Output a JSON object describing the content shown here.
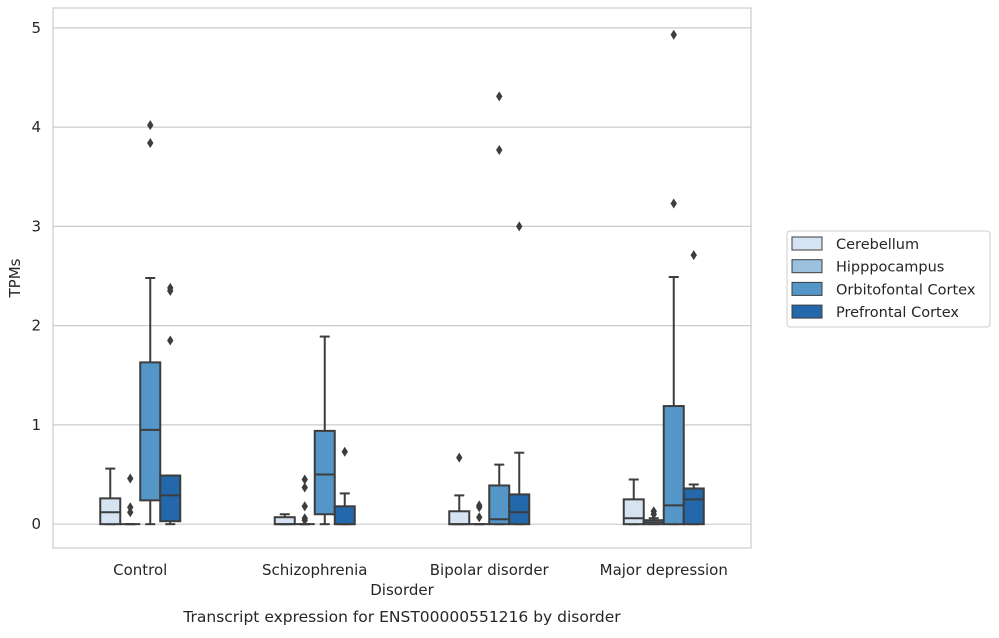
{
  "chart_data": {
    "type": "box",
    "title": "",
    "caption": "Transcript expression for ENST00000551216 by disorder",
    "xlabel": "Disorder",
    "ylabel": "TPMs",
    "ylim": [
      -0.24,
      5.2
    ],
    "yticks": [
      0,
      1,
      2,
      3,
      4,
      5
    ],
    "categories": [
      "Control",
      "Schizophrenia",
      "Bipolar disorder",
      "Major depression"
    ],
    "grid": "horizontal",
    "legend_position": "right",
    "series": [
      {
        "name": "Cerebellum",
        "color": "#d6e3f2",
        "boxes": [
          {
            "q1": 0.0,
            "median": 0.12,
            "q3": 0.26,
            "whisker_low": 0.0,
            "whisker_high": 0.56,
            "outliers": []
          },
          {
            "q1": 0.0,
            "median": 0.0,
            "q3": 0.07,
            "whisker_low": 0.0,
            "whisker_high": 0.1,
            "outliers": []
          },
          {
            "q1": 0.0,
            "median": 0.0,
            "q3": 0.13,
            "whisker_low": 0.0,
            "whisker_high": 0.29,
            "outliers": [
              0.67
            ]
          },
          {
            "q1": 0.0,
            "median": 0.06,
            "q3": 0.25,
            "whisker_low": 0.0,
            "whisker_high": 0.45,
            "outliers": []
          }
        ]
      },
      {
        "name": "Hipppocampus",
        "color": "#9cc1de",
        "boxes": [
          {
            "q1": 0.0,
            "median": 0.0,
            "q3": 0.0,
            "whisker_low": 0.0,
            "whisker_high": 0.0,
            "outliers": [
              0.46,
              0.17,
              0.12
            ]
          },
          {
            "q1": 0.0,
            "median": 0.0,
            "q3": 0.0,
            "whisker_low": 0.0,
            "whisker_high": 0.0,
            "outliers": [
              0.45,
              0.37,
              0.18,
              0.06,
              0.04
            ]
          },
          {
            "q1": 0.0,
            "median": 0.0,
            "q3": 0.0,
            "whisker_low": 0.0,
            "whisker_high": 0.0,
            "outliers": [
              0.19,
              0.17,
              0.07
            ]
          },
          {
            "q1": 0.0,
            "median": 0.02,
            "q3": 0.04,
            "whisker_low": 0.0,
            "whisker_high": 0.06,
            "outliers": [
              0.13,
              0.1
            ]
          }
        ]
      },
      {
        "name": "Orbitofontal Cortex",
        "color": "#5596c8",
        "boxes": [
          {
            "q1": 0.24,
            "median": 0.95,
            "q3": 1.63,
            "whisker_low": 0.0,
            "whisker_high": 2.48,
            "outliers": [
              4.02,
              3.84
            ]
          },
          {
            "q1": 0.1,
            "median": 0.5,
            "q3": 0.94,
            "whisker_low": 0.0,
            "whisker_high": 1.89,
            "outliers": []
          },
          {
            "q1": 0.0,
            "median": 0.05,
            "q3": 0.39,
            "whisker_low": 0.0,
            "whisker_high": 0.6,
            "outliers": [
              4.31,
              3.77
            ]
          },
          {
            "q1": 0.0,
            "median": 0.19,
            "q3": 1.19,
            "whisker_low": 0.0,
            "whisker_high": 2.49,
            "outliers": [
              4.93,
              3.23
            ]
          }
        ]
      },
      {
        "name": "Prefrontal Cortex",
        "color": "#2468ac",
        "boxes": [
          {
            "q1": 0.03,
            "median": 0.29,
            "q3": 0.49,
            "whisker_low": 0.0,
            "whisker_high": 0.49,
            "outliers": [
              2.38,
              2.35,
              1.85
            ]
          },
          {
            "q1": 0.0,
            "median": 0.0,
            "q3": 0.18,
            "whisker_low": 0.0,
            "whisker_high": 0.31,
            "outliers": [
              0.73
            ]
          },
          {
            "q1": 0.0,
            "median": 0.12,
            "q3": 0.3,
            "whisker_low": 0.0,
            "whisker_high": 0.72,
            "outliers": [
              3.0
            ]
          },
          {
            "q1": 0.0,
            "median": 0.25,
            "q3": 0.36,
            "whisker_low": 0.0,
            "whisker_high": 0.4,
            "outliers": [
              2.71
            ]
          }
        ]
      }
    ]
  }
}
